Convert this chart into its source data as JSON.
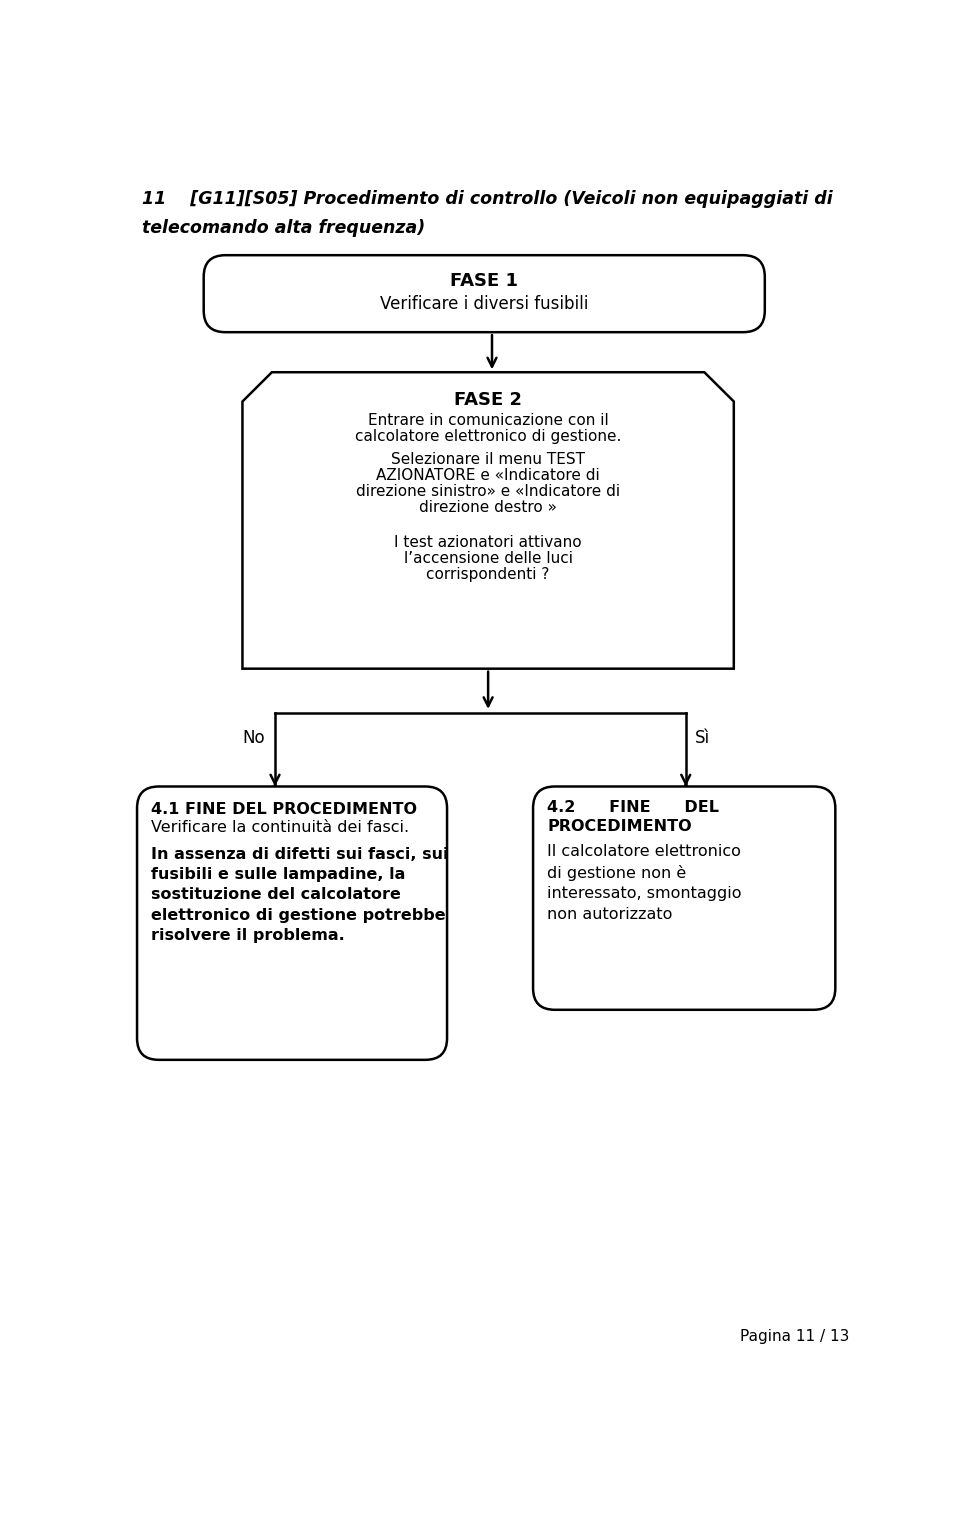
{
  "title_line1": "11    [G11][S05] Procedimento di controllo (Veicoli non equipaggiati di",
  "title_line2": "telecomando alta frequenza)",
  "bg_color": "#ffffff",
  "box1_title": "FASE 1",
  "box1_text": "Verificare i diversi fusibili",
  "box2_title": "FASE 2",
  "box2_line1": "Entrare in comunicazione con il",
  "box2_line2": "calcolatore elettronico di gestione.",
  "box2_line3": "Selezionare il menu TEST",
  "box2_line4": "AZIONATORE e «Indicatore di",
  "box2_line5": "direzione sinistro» e «Indicatore di",
  "box2_line6": "direzione destro »",
  "box2_line7": "I test azionatori attivano",
  "box2_line8": "l’accensione delle luci",
  "box2_line9": "corrispondenti ?",
  "label_no": "No",
  "label_si": "Sì",
  "box3_title": "4.1 FINE DEL PROCEDIMENTO",
  "box3_sub": "Verificare la continuità dei fasci.",
  "box3_body": "In assenza di difetti sui fasci, sui\nfusibili e sulle lampadine, la\nsostituzione del calcolatore\nelettronico di gestione potrebbe\nrisolvere il problema.",
  "box4_title": "4.2",
  "box4_title2": "FINE",
  "box4_title3": "DEL",
  "box4_sub": "PROCEDIMENTO",
  "box4_body": "Il calcolatore elettronico\ndi gestione non è\ninteressato, smontaggio\nnon autorizzato",
  "page_text": "Pagina 11 / 13"
}
